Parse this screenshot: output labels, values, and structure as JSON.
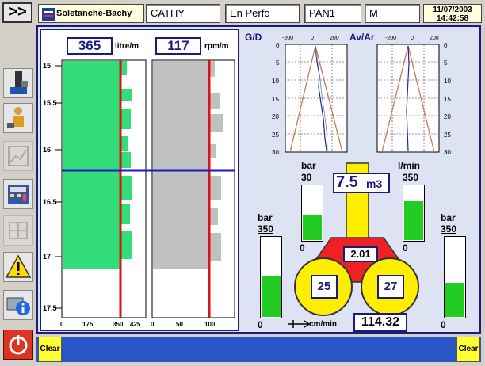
{
  "header": {
    "nav_label": ">>",
    "brand": "Soletanche-Bachy",
    "operator": "CATHY",
    "status": "En Perfo",
    "panel": "PAN1",
    "mode": "M",
    "date": "11/07/2003",
    "time": "14:42:58"
  },
  "sidebar": {
    "icons": [
      "drill-rig-icon",
      "worker-icon",
      "chart-icon",
      "calculator-icon",
      "grid-icon",
      "warning-icon",
      "info-icon",
      "power-icon"
    ]
  },
  "colors": {
    "frame": "#1a1a80",
    "flow_fill": "#33dd77",
    "rotation_fill": "#c0c0c0",
    "limit_line": "#dd1111",
    "gauge_fill": "#22cc22",
    "yellow": "#ffee00",
    "red": "#ee2222"
  },
  "depth_chart": {
    "flow_value": "365",
    "flow_unit": "litre/m",
    "rotation_value": "117",
    "rotation_unit": "rpm/m",
    "depth_ticks": [
      "15",
      "15.5",
      "16",
      "16.5",
      "17",
      "17.5"
    ],
    "flow_axis_ticks": [
      "0",
      "175",
      "350",
      "425"
    ],
    "rotation_axis_ticks": [
      "0",
      "50",
      "100"
    ],
    "flow_limit": 350,
    "rotation_limit": 100,
    "current_depth": 16.2,
    "drilled_to_depth": 17.1
  },
  "deviation": {
    "left_title": "G/D",
    "right_title": "Av/Ar",
    "x_ticks": [
      "-200",
      "0",
      "200"
    ],
    "y_ticks": [
      "0",
      "5",
      "10",
      "15",
      "20",
      "25",
      "30"
    ]
  },
  "gauges": {
    "pressure_left": {
      "unit": "bar",
      "max": "350",
      "min": "0",
      "fraction": 0.5
    },
    "pressure_mid": {
      "unit": "bar",
      "max": "30",
      "min": "0",
      "fraction": 0.45
    },
    "flow_mid": {
      "unit": "l/min",
      "max": "350",
      "min": "0",
      "fraction": 0.7
    },
    "pressure_right": {
      "unit": "bar",
      "max": "350",
      "min": "0",
      "fraction": 0.42
    }
  },
  "machine": {
    "volume_value": "7.5",
    "volume_unit": "m3",
    "center_value": "2.01",
    "left_wheel": "25",
    "right_wheel": "27",
    "speed_unit": "cm/min",
    "speed_value": "114.32"
  },
  "footer": {
    "clear_left": "Clear",
    "clear_right": "Clear"
  }
}
